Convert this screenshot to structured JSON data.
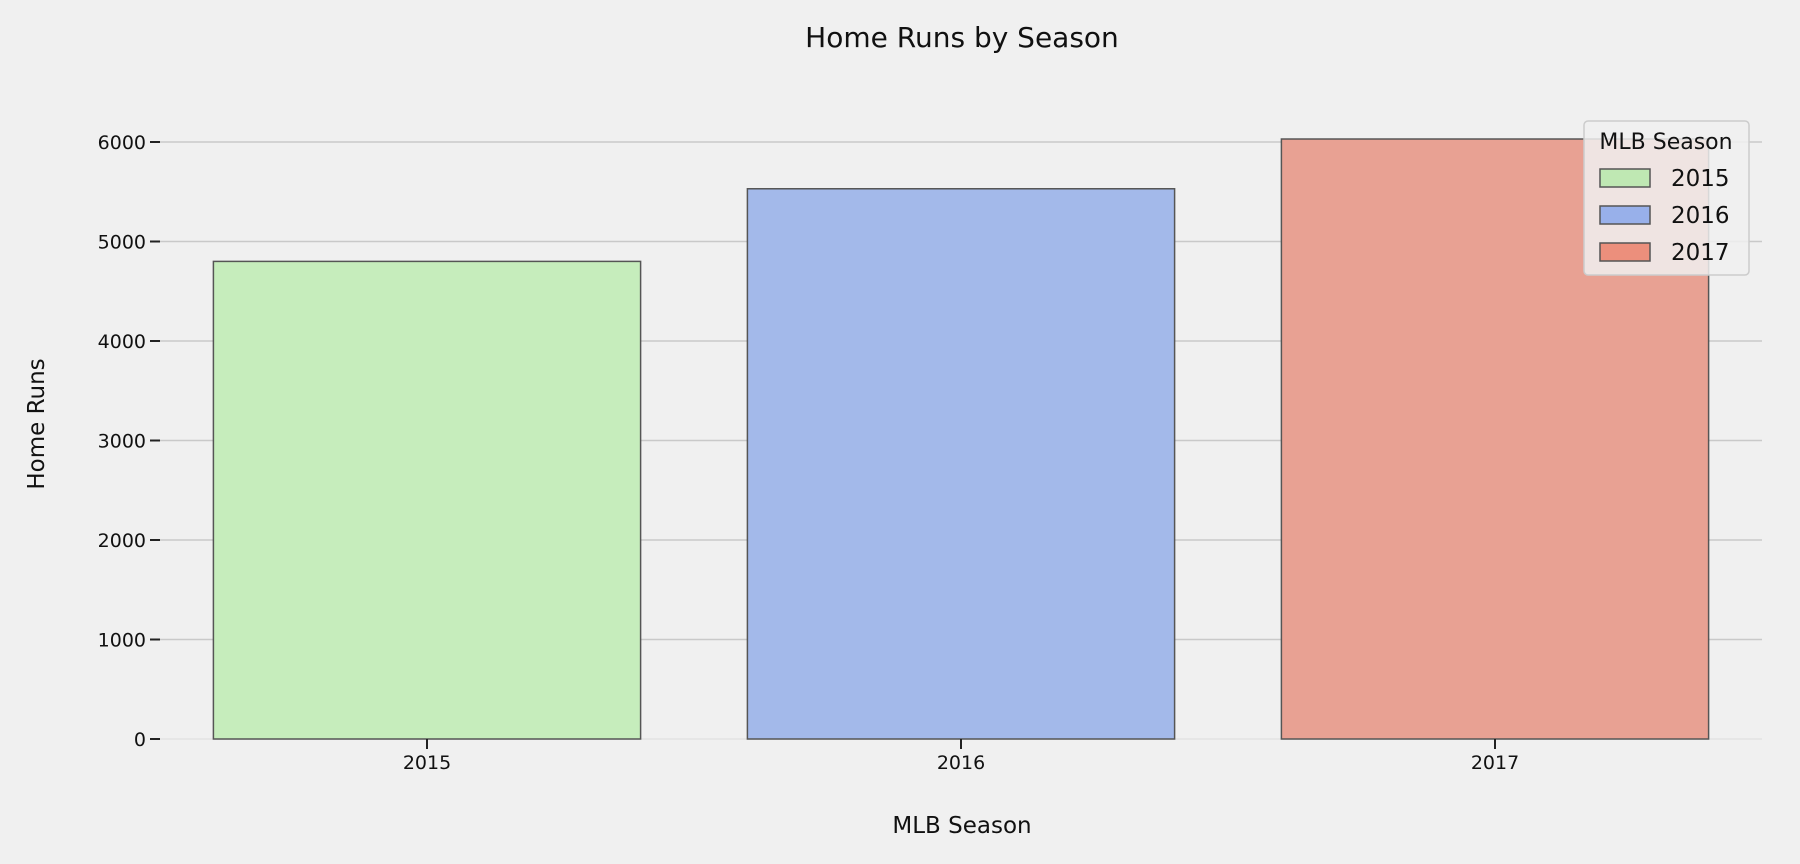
{
  "chart_data": {
    "type": "bar",
    "title": "Home Runs by Season",
    "xlabel": "MLB Season",
    "ylabel": "Home Runs",
    "categories": [
      "2015",
      "2016",
      "2017"
    ],
    "values": [
      4800,
      5530,
      6030
    ],
    "colors": [
      "#c6edbc",
      "#a3b9ea",
      "#e8a193"
    ],
    "legend_swatch_colors": [
      "#bfe8b3",
      "#98b0ea",
      "#ec8f7c"
    ],
    "bar_edge_color": "#555555",
    "ylim": [
      0,
      6000
    ],
    "yticks": [
      0,
      1000,
      2000,
      3000,
      4000,
      5000,
      6000
    ],
    "grid": "y",
    "legend": {
      "title": "MLB Season",
      "placement": "top-right",
      "entries": [
        "2015",
        "2016",
        "2017"
      ]
    }
  }
}
